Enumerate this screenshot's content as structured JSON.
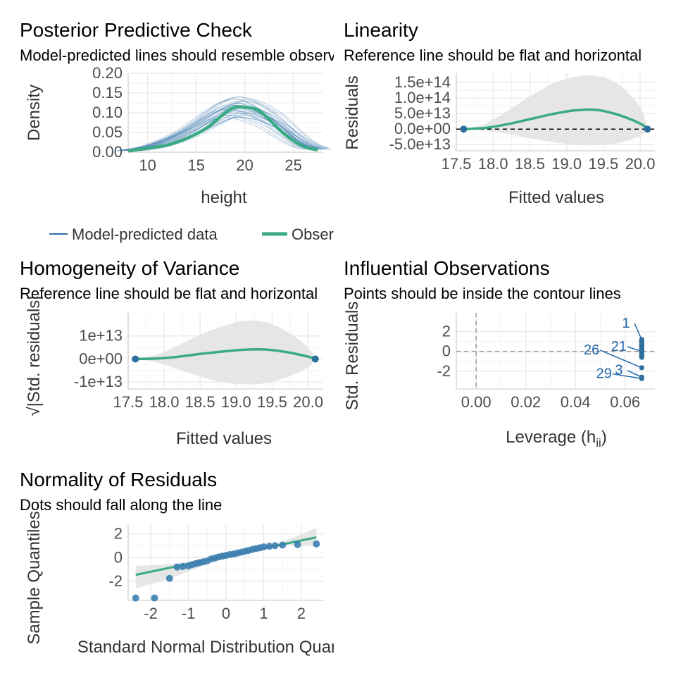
{
  "colors": {
    "model_line": "#2d6fa8",
    "observed_line": "#3aaa85",
    "point": "#2f6f9e",
    "band": "#e3e3e3",
    "grid": "#ebebeb",
    "ref_line": "#000000",
    "label": "#2166ac"
  },
  "chart_data": [
    {
      "id": "ppc",
      "type": "line",
      "title": "Posterior Predictive Check",
      "subtitle": "Model-predicted lines should resemble observed data line",
      "xlabel": "height",
      "ylabel": "Density",
      "xlim": [
        8,
        28
      ],
      "ylim": [
        0,
        0.2
      ],
      "x_ticks": [
        10,
        15,
        20,
        25
      ],
      "x_tick_labels": [
        "10",
        "15",
        "20",
        "25"
      ],
      "y_ticks": [
        0,
        0.05,
        0.1,
        0.15,
        0.2
      ],
      "y_tick_labels": [
        "0.00",
        "0.05",
        "0.10",
        "0.15",
        "0.20"
      ],
      "grid": true,
      "legend_position": "bottom",
      "legend": [
        "Model-predicted data",
        "Observed data"
      ],
      "series": [
        {
          "name": "Observed data",
          "x": [
            8,
            10,
            12,
            14,
            16,
            18,
            19,
            20,
            21,
            22,
            24,
            26,
            27.5
          ],
          "values": [
            0.003,
            0.01,
            0.018,
            0.035,
            0.06,
            0.1,
            0.114,
            0.114,
            0.11,
            0.095,
            0.048,
            0.015,
            0.006
          ]
        },
        {
          "name": "Model-predicted data",
          "x": [
            8,
            10,
            12,
            14,
            16,
            17,
            18,
            19,
            20,
            21,
            22,
            23,
            24,
            26,
            27.5
          ],
          "values": [
            0.004,
            0.012,
            0.028,
            0.05,
            0.08,
            0.095,
            0.108,
            0.114,
            0.112,
            0.104,
            0.092,
            0.078,
            0.058,
            0.022,
            0.008
          ]
        }
      ]
    },
    {
      "id": "linearity",
      "type": "line",
      "title": "Linearity",
      "subtitle": "Reference line should be flat and horizontal",
      "xlabel": "Fitted values",
      "ylabel": "Residuals",
      "xlim": [
        17.5,
        20.2
      ],
      "ylim": [
        -70000000000000.0,
        180000000000000.0
      ],
      "x_ticks": [
        17.5,
        18.0,
        18.5,
        19.0,
        19.5,
        20.0
      ],
      "x_tick_labels": [
        "17.5",
        "18.0",
        "18.5",
        "19.0",
        "19.5",
        "20.0"
      ],
      "y_ticks": [
        -50000000000000.0,
        0,
        50000000000000.0,
        100000000000000.0,
        150000000000000.0
      ],
      "y_tick_labels": [
        "-5.0e+13",
        "0.0e+00",
        "5.0e+13",
        "1.0e+14",
        "1.5e+14"
      ],
      "grid": true,
      "reference_line": 0,
      "points": [
        {
          "x": 17.6,
          "y": 0
        },
        {
          "x": 20.1,
          "y": 0
        }
      ],
      "fit": {
        "x": [
          17.6,
          17.9,
          18.2,
          18.5,
          18.8,
          19.1,
          19.4,
          19.7,
          20.0,
          20.1
        ],
        "y": [
          0,
          4000000000000.0,
          16000000000000.0,
          32000000000000.0,
          48000000000000.0,
          60000000000000.0,
          62000000000000.0,
          46000000000000.0,
          18000000000000.0,
          0
        ],
        "band_upper": [
          0,
          18000000000000.0,
          60000000000000.0,
          105000000000000.0,
          145000000000000.0,
          168000000000000.0,
          172000000000000.0,
          145000000000000.0,
          70000000000000.0,
          0
        ],
        "band_lower": [
          0,
          -5000000000000.0,
          -15000000000000.0,
          -30000000000000.0,
          -42000000000000.0,
          -50000000000000.0,
          -52000000000000.0,
          -45000000000000.0,
          -22000000000000.0,
          0
        ]
      }
    },
    {
      "id": "homogeneity",
      "type": "line",
      "title": "Homogeneity of Variance",
      "subtitle": "Reference line should be flat and horizontal",
      "xlabel": "Fitted values",
      "ylabel": "√|Std. residuals|",
      "xlim": [
        17.5,
        20.2
      ],
      "ylim": [
        -13000000000000.0,
        20000000000000.0
      ],
      "x_ticks": [
        17.5,
        18.0,
        18.5,
        19.0,
        19.5,
        20.0
      ],
      "x_tick_labels": [
        "17.5",
        "18.0",
        "18.5",
        "19.0",
        "19.5",
        "20.0"
      ],
      "y_ticks": [
        -10000000000000.0,
        0,
        10000000000000.0
      ],
      "y_tick_labels": [
        "-1e+13",
        "0e+00",
        "1e+13"
      ],
      "grid": true,
      "points": [
        {
          "x": 17.6,
          "y": 0
        },
        {
          "x": 20.1,
          "y": 0
        }
      ],
      "fit": {
        "x": [
          17.6,
          17.9,
          18.2,
          18.5,
          18.8,
          19.1,
          19.4,
          19.7,
          20.0,
          20.1
        ],
        "y": [
          0,
          200000000000.0,
          1000000000000.0,
          2200000000000.0,
          3200000000000.0,
          4000000000000.0,
          4100000000000.0,
          3000000000000.0,
          1000000000000.0,
          0
        ],
        "band_upper": [
          0,
          2000000000000.0,
          6000000000000.0,
          10500000000000.0,
          14000000000000.0,
          16500000000000.0,
          16000000000000.0,
          12000000000000.0,
          5000000000000.0,
          0
        ],
        "band_lower": [
          0,
          -1500000000000.0,
          -4500000000000.0,
          -7500000000000.0,
          -10000000000000.0,
          -11000000000000.0,
          -10500000000000.0,
          -8000000000000.0,
          -3500000000000.0,
          0
        ]
      }
    },
    {
      "id": "influential",
      "type": "scatter",
      "title": "Influential Observations",
      "subtitle": "Points should be inside the contour lines",
      "xlabel": "Leverage (hii)",
      "xlabel_main": "Leverage (h",
      "xlabel_sub": "ii",
      "xlabel_close": ")",
      "ylabel": "Std. Residuals",
      "xlim": [
        -0.008,
        0.072
      ],
      "ylim": [
        -3.8,
        3.9
      ],
      "x_ticks": [
        0,
        0.02,
        0.04,
        0.06
      ],
      "x_tick_labels": [
        "0.00",
        "0.02",
        "0.04",
        "0.06"
      ],
      "y_ticks": [
        -2,
        0,
        2
      ],
      "y_tick_labels": [
        "-2",
        "0",
        "2"
      ],
      "grid": true,
      "points_x": 0.0667,
      "points_y": [
        1.2,
        1.1,
        1.0,
        0.9,
        0.8,
        0.7,
        0.6,
        0.5,
        0.4,
        0.3,
        0.2,
        0.1,
        0.0,
        -0.1,
        -0.2,
        -0.3,
        -0.4,
        -0.5,
        -0.6,
        -1.65,
        -2.6,
        -2.75
      ],
      "labels": [
        {
          "text": "1",
          "x": 0.0667,
          "y": 1.2,
          "lx": 0.0604,
          "ly": 2.4
        },
        {
          "text": "21",
          "x": 0.0667,
          "y": 0.0,
          "lx": 0.0575,
          "ly": 0.05
        },
        {
          "text": "26",
          "x": 0.0667,
          "y": -1.65,
          "lx": 0.0465,
          "ly": -0.3
        },
        {
          "text": "3",
          "x": 0.0667,
          "y": -2.6,
          "lx": 0.0575,
          "ly": -2.35
        },
        {
          "text": "29",
          "x": 0.0667,
          "y": -2.75,
          "lx": 0.0515,
          "ly": -2.7
        }
      ]
    },
    {
      "id": "normality",
      "type": "scatter",
      "title": "Normality of Residuals",
      "subtitle": "Dots should fall along the line",
      "xlabel": "Standard Normal Distribution Quantiles",
      "ylabel": "Sample Quantiles",
      "xlim": [
        -2.6,
        2.6
      ],
      "ylim": [
        -3.6,
        2.8
      ],
      "x_ticks": [
        -2,
        -1,
        0,
        1,
        2
      ],
      "x_tick_labels": [
        "-2",
        "-1",
        "0",
        "1",
        "2"
      ],
      "y_ticks": [
        -2,
        0,
        2
      ],
      "y_tick_labels": [
        "-2",
        "0",
        "2"
      ],
      "grid": true,
      "points": [
        [
          -2.4,
          -3.4
        ],
        [
          -1.9,
          -3.4
        ],
        [
          -1.5,
          -1.75
        ],
        [
          -1.3,
          -0.8
        ],
        [
          -1.15,
          -0.75
        ],
        [
          -1.0,
          -0.7
        ],
        [
          -0.9,
          -0.6
        ],
        [
          -0.8,
          -0.5
        ],
        [
          -0.7,
          -0.42
        ],
        [
          -0.6,
          -0.35
        ],
        [
          -0.5,
          -0.28
        ],
        [
          -0.4,
          -0.12
        ],
        [
          -0.3,
          -0.05
        ],
        [
          -0.2,
          0.05
        ],
        [
          -0.1,
          0.12
        ],
        [
          0.0,
          0.18
        ],
        [
          0.1,
          0.25
        ],
        [
          0.2,
          0.3
        ],
        [
          0.3,
          0.38
        ],
        [
          0.4,
          0.45
        ],
        [
          0.5,
          0.52
        ],
        [
          0.6,
          0.6
        ],
        [
          0.7,
          0.68
        ],
        [
          0.8,
          0.75
        ],
        [
          0.9,
          0.82
        ],
        [
          1.0,
          0.9
        ],
        [
          1.15,
          0.95
        ],
        [
          1.3,
          1.0
        ],
        [
          1.5,
          1.05
        ],
        [
          1.9,
          1.1
        ],
        [
          2.4,
          1.15
        ]
      ],
      "fit_line": {
        "x": [
          -2.4,
          2.4
        ],
        "y": [
          -1.45,
          1.7
        ]
      },
      "band": {
        "x": [
          -2.4,
          -1.5,
          -0.5,
          0,
          0.5,
          1.5,
          2.4
        ],
        "upper": [
          -0.7,
          -0.55,
          -0.1,
          0.18,
          0.45,
          1.35,
          2.5
        ],
        "lower": [
          -2.6,
          -1.75,
          -0.55,
          0.1,
          0.4,
          1.0,
          0.95
        ]
      }
    }
  ]
}
